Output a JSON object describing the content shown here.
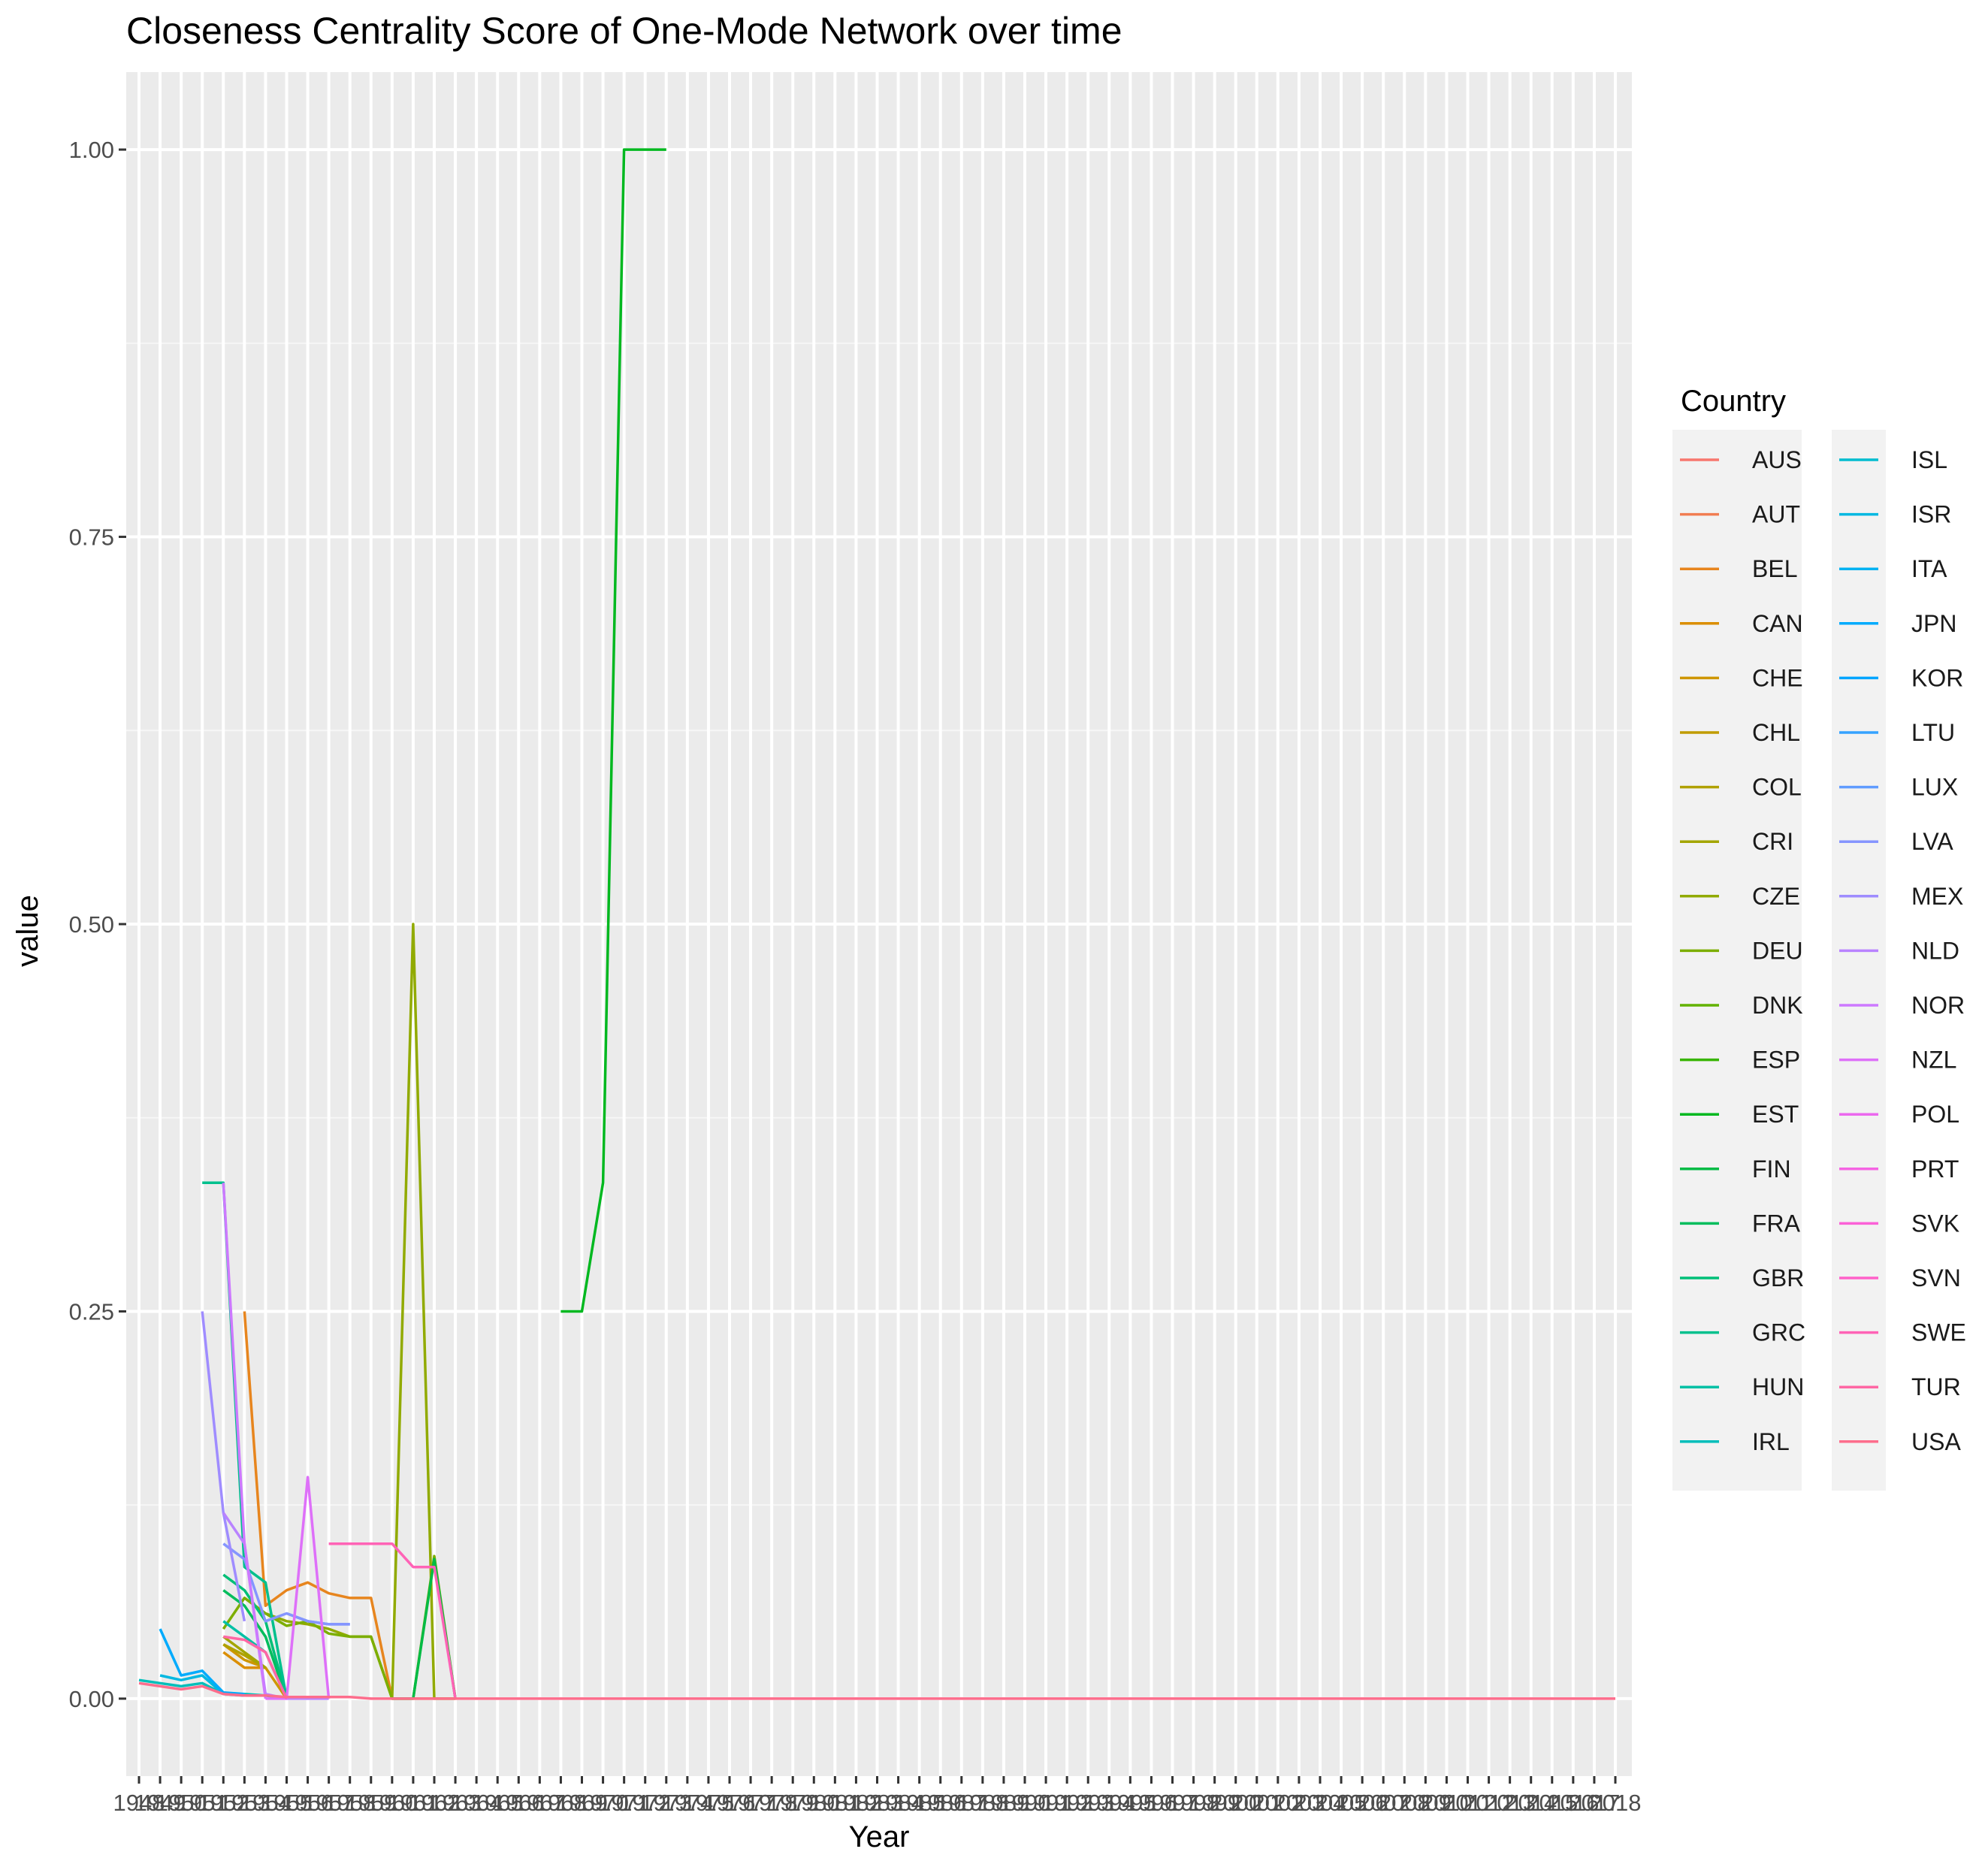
{
  "chart_data": {
    "type": "line",
    "title": "Closeness Centrality Score of One-Mode Network over time",
    "xlabel": "Year",
    "ylabel": "value",
    "x_ticks": [
      "1948",
      "1949",
      "1950",
      "1951",
      "1952",
      "1953",
      "1954",
      "1955",
      "1956",
      "1957",
      "1958",
      "1959",
      "1960",
      "1961",
      "1962",
      "1963",
      "1964",
      "1965",
      "1966",
      "1967",
      "1968",
      "1969",
      "1970",
      "1971",
      "1972",
      "1973",
      "1974",
      "1975",
      "1976",
      "1977",
      "1978",
      "1979",
      "1980",
      "1981",
      "1982",
      "1983",
      "1984",
      "1985",
      "1986",
      "1987",
      "1988",
      "1989",
      "1990",
      "1991",
      "1992",
      "1993",
      "1994",
      "1995",
      "1996",
      "1997",
      "1998",
      "1999",
      "2000",
      "2001",
      "2002",
      "2003",
      "2004",
      "2005",
      "2006",
      "2007",
      "2008",
      "2009",
      "2010",
      "2011",
      "2012",
      "2013",
      "2014",
      "2015",
      "2016",
      "2017",
      "2018"
    ],
    "y_ticks": [
      "0.00",
      "0.25",
      "0.50",
      "0.75",
      "1.00"
    ],
    "ylim": [
      -0.05,
      1.05
    ],
    "grid": true,
    "legend_title": "Country",
    "legend_position": "right",
    "series": [
      {
        "name": "AUS",
        "color": "#F8766D",
        "x": [],
        "y": []
      },
      {
        "name": "AUT",
        "color": "#F17D51",
        "x": [],
        "y": []
      },
      {
        "name": "BEL",
        "color": "#E7851E",
        "x": [
          1953,
          1954,
          1955,
          1956,
          1957,
          1958,
          1959,
          1960,
          1961,
          1962,
          1963
        ],
        "y": [
          0.25,
          0.06,
          0.07,
          0.075,
          0.068,
          0.065,
          0.065,
          0.0,
          0.0,
          0.0,
          0.0
        ]
      },
      {
        "name": "CAN",
        "color": "#DB8E00",
        "x": [
          1952,
          1953,
          1954
        ],
        "y": [
          0.03,
          0.02,
          0.02
        ]
      },
      {
        "name": "CHE",
        "color": "#CE9600",
        "x": [
          1952,
          1953,
          1954,
          1955
        ],
        "y": [
          0.035,
          0.025,
          0.02,
          0.0
        ]
      },
      {
        "name": "CHL",
        "color": "#C09B00",
        "x": [],
        "y": []
      },
      {
        "name": "COL",
        "color": "#B0A100",
        "x": [
          1952,
          1953,
          1954
        ],
        "y": [
          0.035,
          0.028,
          0.02
        ]
      },
      {
        "name": "CRI",
        "color": "#A3A500",
        "x": [
          1952,
          1953,
          1954
        ],
        "y": [
          0.04,
          0.03,
          0.02
        ]
      },
      {
        "name": "CZE",
        "color": "#91AA00",
        "x": [
          1953,
          1954,
          1955,
          1956,
          1957,
          1958,
          1959,
          1960,
          1961,
          1962,
          1963
        ],
        "y": [
          0.065,
          0.055,
          0.05,
          0.048,
          0.045,
          0.04,
          0.04,
          0.0,
          0.5,
          0.0,
          0.0
        ]
      },
      {
        "name": "DEU",
        "color": "#7CAE00",
        "x": [
          1952,
          1953,
          1954,
          1955,
          1956,
          1957,
          1958,
          1959,
          1960,
          1961,
          1962,
          1963
        ],
        "y": [
          0.045,
          0.065,
          0.055,
          0.047,
          0.05,
          0.042,
          0.04,
          0.04,
          0.0,
          0.0,
          0.092,
          0.0
        ]
      },
      {
        "name": "DNK",
        "color": "#62B200",
        "x": [],
        "y": []
      },
      {
        "name": "ESP",
        "color": "#38B500",
        "x": [],
        "y": []
      },
      {
        "name": "EST",
        "color": "#00B81F",
        "x": [
          1968,
          1969,
          1970,
          1971,
          1972,
          1973
        ],
        "y": [
          0.25,
          0.25,
          0.333,
          1.0,
          1.0,
          1.0
        ]
      },
      {
        "name": "FIN",
        "color": "#00BB45",
        "x": [
          1960,
          1961,
          1962,
          1963
        ],
        "y": [
          0.0,
          0.0,
          0.09,
          0.0
        ]
      },
      {
        "name": "FRA",
        "color": "#00BD5C",
        "x": [
          1952,
          1953,
          1954,
          1955
        ],
        "y": [
          0.07,
          0.06,
          0.04,
          0.0
        ]
      },
      {
        "name": "GBR",
        "color": "#00BF77",
        "x": [
          1952,
          1953,
          1954,
          1955
        ],
        "y": [
          0.08,
          0.07,
          0.05,
          0.0
        ]
      },
      {
        "name": "GRC",
        "color": "#00C08D",
        "x": [
          1951,
          1952,
          1953,
          1954,
          1955
        ],
        "y": [
          0.333,
          0.333,
          0.085,
          0.075,
          0.0
        ]
      },
      {
        "name": "HUN",
        "color": "#00C0A5",
        "x": [
          1952,
          1953,
          1954,
          1955
        ],
        "y": [
          0.05,
          0.04,
          0.03,
          0.0
        ]
      },
      {
        "name": "IRL",
        "color": "#00BEBA",
        "x": [
          1948,
          1949,
          1950,
          1951,
          1952,
          1953,
          1954,
          1955
        ],
        "y": [
          0.012,
          0.01,
          0.008,
          0.01,
          0.003,
          0.003,
          0.002,
          0.0
        ]
      },
      {
        "name": "ISL",
        "color": "#00BCCF",
        "x": [],
        "y": []
      },
      {
        "name": "ISR",
        "color": "#00B8E1",
        "x": [
          1949,
          1950,
          1951,
          1952,
          1953
        ],
        "y": [
          0.015,
          0.012,
          0.015,
          0.003,
          0.002
        ]
      },
      {
        "name": "ITA",
        "color": "#00B2F2",
        "x": [],
        "y": []
      },
      {
        "name": "JPN",
        "color": "#00ABFD",
        "x": [
          1949,
          1950,
          1951,
          1952,
          1953
        ],
        "y": [
          0.045,
          0.015,
          0.018,
          0.004,
          0.003
        ]
      },
      {
        "name": "KOR",
        "color": "#00A5FF",
        "x": [],
        "y": []
      },
      {
        "name": "LTU",
        "color": "#35A2FF",
        "x": [],
        "y": []
      },
      {
        "name": "LUX",
        "color": "#619CFF",
        "x": [
          1955,
          1956,
          1957,
          1958
        ],
        "y": [
          0.055,
          0.05,
          0.048,
          0.048
        ]
      },
      {
        "name": "LVA",
        "color": "#8595FF",
        "x": [
          1952,
          1953,
          1954,
          1955,
          1956,
          1957,
          1958
        ],
        "y": [
          0.1,
          0.09,
          0.05,
          0.055,
          0.05,
          0.048,
          0.048
        ]
      },
      {
        "name": "MEX",
        "color": "#9F8CFF",
        "x": [
          1951,
          1952,
          1953
        ],
        "y": [
          0.25,
          0.12,
          0.05
        ]
      },
      {
        "name": "NLD",
        "color": "#B983FF",
        "x": [
          1952,
          1953,
          1954,
          1955,
          1956,
          1957
        ],
        "y": [
          0.12,
          0.1,
          0.003,
          0.0,
          0.0,
          0.0
        ]
      },
      {
        "name": "NOR",
        "color": "#CD79FF",
        "x": [
          1952,
          1953,
          1954
        ],
        "y": [
          0.333,
          0.1,
          0.0
        ]
      },
      {
        "name": "NZL",
        "color": "#DE70F9",
        "x": [
          1954,
          1955,
          1956,
          1957
        ],
        "y": [
          0.0,
          0.0,
          0.143,
          0.0
        ]
      },
      {
        "name": "POL",
        "color": "#EB68EE",
        "x": [],
        "y": []
      },
      {
        "name": "PRT",
        "color": "#F564E3",
        "x": [],
        "y": []
      },
      {
        "name": "SVK",
        "color": "#FB61D7",
        "x": [],
        "y": []
      },
      {
        "name": "SVN",
        "color": "#FF61C9",
        "x": [],
        "y": []
      },
      {
        "name": "SWE",
        "color": "#FF63B6",
        "x": [
          1957,
          1958,
          1959,
          1960,
          1961,
          1962,
          1963
        ],
        "y": [
          0.1,
          0.1,
          0.1,
          0.1,
          0.085,
          0.085,
          0.0
        ]
      },
      {
        "name": "TUR",
        "color": "#FF67A4",
        "x": [
          1952,
          1953,
          1954,
          1955
        ],
        "y": [
          0.04,
          0.038,
          0.03,
          0.0
        ]
      },
      {
        "name": "USA",
        "color": "#FD6D8C",
        "x": [
          1948,
          1949,
          1950,
          1951,
          1952,
          1953,
          1954,
          1955,
          1956,
          1957,
          1958,
          1959,
          1960,
          1961,
          1962,
          1963,
          1964,
          1965,
          1966,
          1967,
          1968,
          1969,
          1970,
          1971,
          1972,
          1973,
          1974,
          1975,
          1976,
          1977,
          1978,
          1979,
          1980,
          1981,
          1982,
          1983,
          1984,
          1985,
          1986,
          1987,
          1988,
          1989,
          1990,
          1991,
          1992,
          1993,
          1994,
          1995,
          1996,
          1997,
          1998,
          1999,
          2000,
          2001,
          2002,
          2003,
          2004,
          2005,
          2006,
          2007,
          2008,
          2009,
          2010,
          2011,
          2012,
          2013,
          2014,
          2015,
          2016,
          2017,
          2018
        ],
        "y": [
          0.01,
          0.008,
          0.006,
          0.008,
          0.003,
          0.002,
          0.002,
          0.001,
          0.001,
          0.001,
          0.001,
          0.0,
          0.0,
          0.0,
          0.0,
          0.0,
          0.0,
          0.0,
          0.0,
          0.0,
          0.0,
          0.0,
          0.0,
          0.0,
          0.0,
          0.0,
          0.0,
          0.0,
          0.0,
          0.0,
          0.0,
          0.0,
          0.0,
          0.0,
          0.0,
          0.0,
          0.0,
          0.0,
          0.0,
          0.0,
          0.0,
          0.0,
          0.0,
          0.0,
          0.0,
          0.0,
          0.0,
          0.0,
          0.0,
          0.0,
          0.0,
          0.0,
          0.0,
          0.0,
          0.0,
          0.0,
          0.0,
          0.0,
          0.0,
          0.0,
          0.0,
          0.0,
          0.0,
          0.0,
          0.0,
          0.0,
          0.0,
          0.0,
          0.0,
          0.0,
          0.0
        ]
      }
    ]
  }
}
